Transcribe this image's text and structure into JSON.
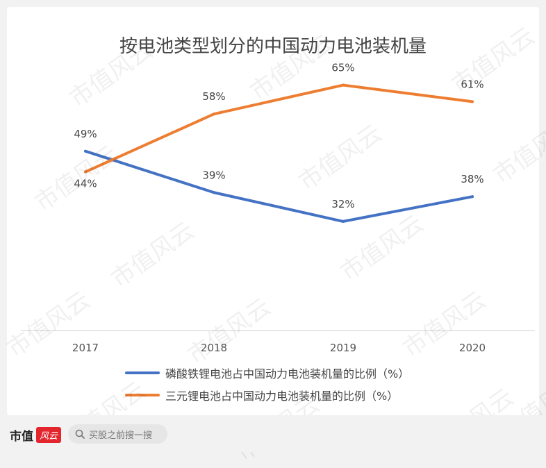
{
  "chart_data": {
    "type": "line",
    "title": "按电池类型划分的中国动力电池装机量",
    "categories": [
      "2017",
      "2018",
      "2019",
      "2020"
    ],
    "series": [
      {
        "name": "磷酸铁锂电池占中国动力电池装机量的比例（%）",
        "values": [
          49,
          39,
          32,
          38
        ],
        "labels": [
          "49%",
          "39%",
          "32%",
          "38%"
        ],
        "color": "#4472c4"
      },
      {
        "name": "三元锂电池占中国动力电池装机量的比例（%）",
        "values": [
          44,
          58,
          65,
          61
        ],
        "labels": [
          "44%",
          "58%",
          "65%",
          "61%"
        ],
        "color": "#ed7d31"
      }
    ],
    "ylim": [
      0,
      70
    ],
    "grid": false,
    "legend": "bottom"
  },
  "watermark_text": "市值风云",
  "footer": {
    "brand": "市值",
    "brand_logo": "风云",
    "search_placeholder": "买股之前搜一搜",
    "search_icon": "search-icon"
  }
}
